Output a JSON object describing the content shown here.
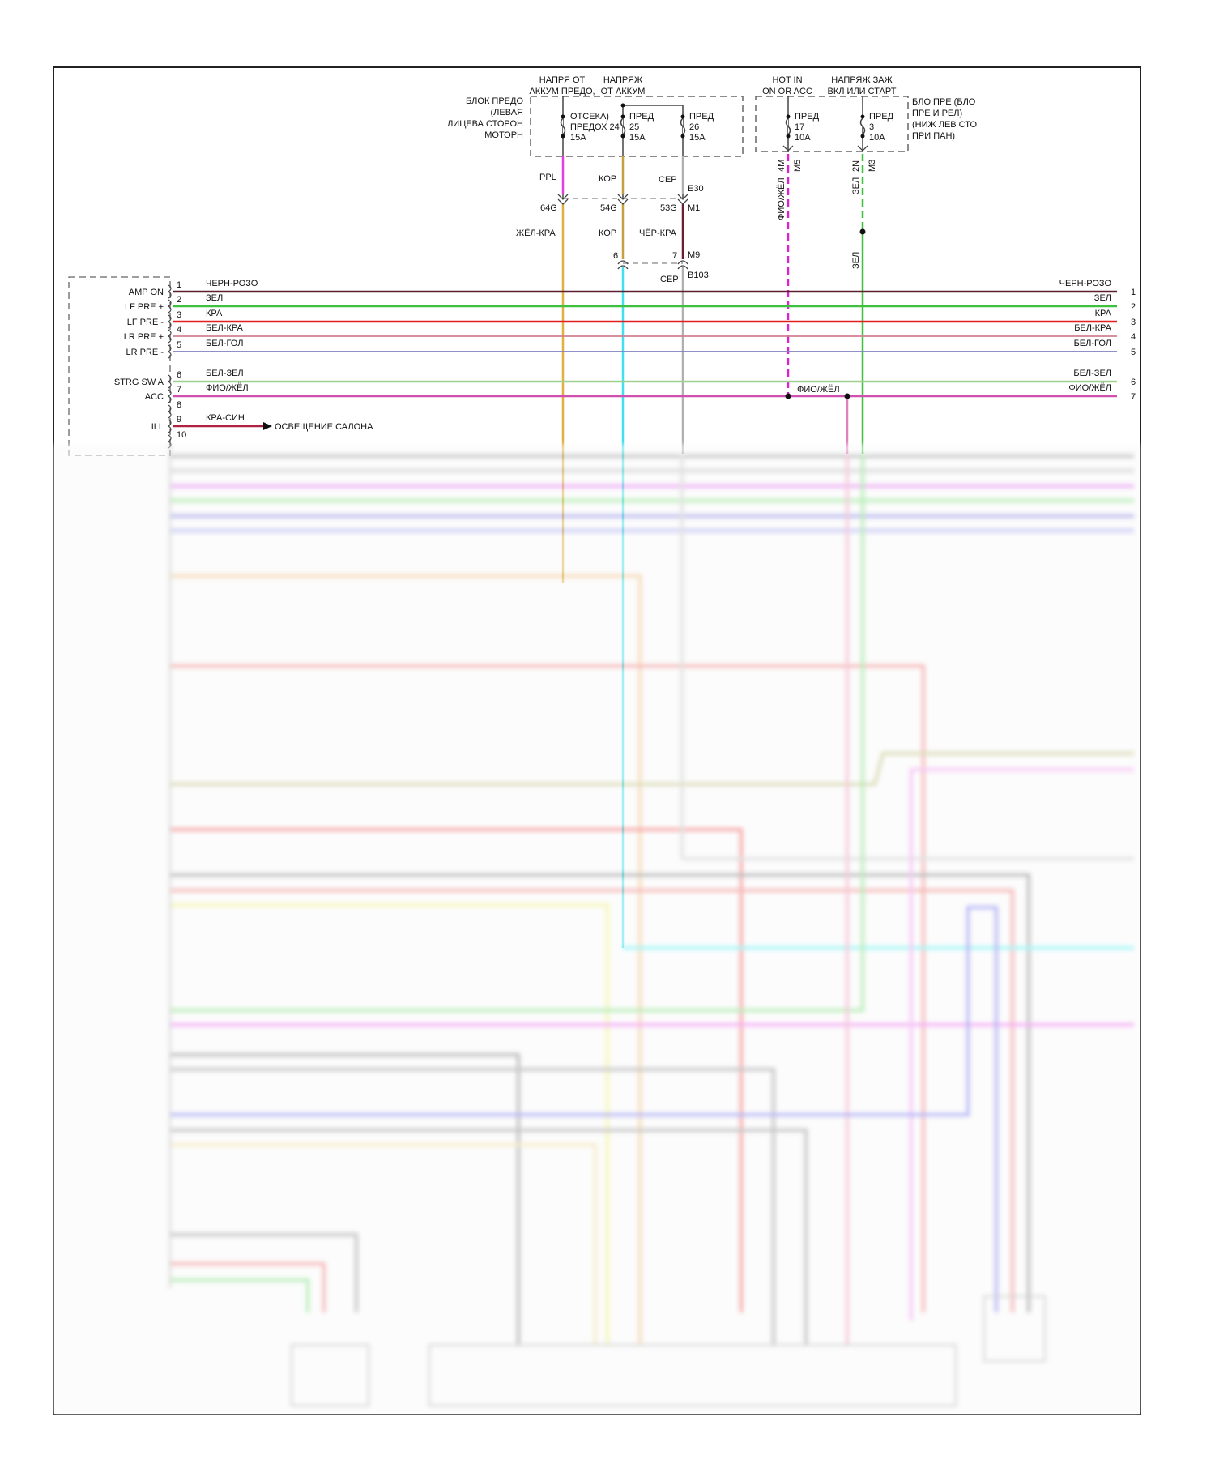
{
  "supplies": {
    "bat1": [
      "НАПРЯ ОТ",
      "АККУМ ПРЕДО,"
    ],
    "bat2": [
      "НАПРЯЖ",
      "ОТ АККУМ"
    ],
    "hot": [
      "HOT IN",
      "ON OR ACC"
    ],
    "ign": [
      "НАПРЯЖ ЗАЖ",
      "ВКЛ ИЛИ СТАРТ"
    ]
  },
  "fuse_block_left": [
    "БЛОК ПРЕДО",
    "(ЛЕВАЯ",
    "ЛИЦЕВА СТОРОН",
    "МОТОРН"
  ],
  "fuse_block_right": [
    "БЛО ПРЕ (БЛО",
    "ПРЕ И РЕЛ)",
    "(НИЖ ЛЕВ СТО",
    "ПРИ ПАН)"
  ],
  "fuses": [
    {
      "lines": [
        "ОТСЕКА)",
        "ПРЕДОХ 24",
        "15A"
      ]
    },
    {
      "lines": [
        "ПРЕД",
        "25",
        "15A"
      ]
    },
    {
      "lines": [
        "ПРЕД",
        "26",
        "15A"
      ]
    },
    {
      "lines": [
        "ПРЕД",
        "17",
        "10A"
      ]
    },
    {
      "lines": [
        "ПРЕД",
        "3",
        "10A"
      ]
    }
  ],
  "upper_wires": {
    "w1": "PPL",
    "w2": "КОР",
    "w3": "СЕР",
    "e30": "E30",
    "m1": "M1"
  },
  "connectors": {
    "c1": "64G",
    "c2": "54G",
    "c3": "53G",
    "p6": "6",
    "p7": "7",
    "m9": "M9",
    "b103": "B103",
    "m4": "4M",
    "m5": "M5",
    "n2": "2N",
    "m3": "M3"
  },
  "lower_wires": {
    "w1": "ЖЁЛ-КРА",
    "w2": "КОР",
    "w3": "ЧЁР-КРА",
    "w3b": "СЕР",
    "hot": "ФИО/ЖЁЛ",
    "ign": "ЗЕЛ",
    "ign2": "ЗЕЛ",
    "acc_splice": "ФИО/ЖЁЛ"
  },
  "colors": {
    "ppl": "#e040e0",
    "kor": "#c8a040",
    "ser": "#b0b0b0",
    "zhel_kra": "#e0b040",
    "cher_kra": "#6a2030",
    "cyan": "#40e0f0",
    "fio": "#e020d0",
    "zel": "#40c040",
    "kra": "#e02020",
    "black_pink": "#5a2030",
    "bel_kra": "#d08090",
    "bel_gol": "#8080c0",
    "bel_zel": "#a0d090",
    "fio_zhel": "#d050b0",
    "kra_sin": "#b02040"
  },
  "radio_pins": [
    {
      "num": "1",
      "name": "AMP ON",
      "wire": "ЧЕРН-РОЗО"
    },
    {
      "num": "2",
      "name": "LF PRE +",
      "wire": "ЗЕЛ"
    },
    {
      "num": "3",
      "name": "LF PRE -",
      "wire": "КРА"
    },
    {
      "num": "4",
      "name": "LR PRE +",
      "wire": "БЕЛ-КРА"
    },
    {
      "num": "5",
      "name": "LR PRE -",
      "wire": "БЕЛ-ГОЛ"
    },
    {
      "num": "6",
      "name": "STRG SW A",
      "wire": "БЕЛ-ЗЕЛ"
    },
    {
      "num": "7",
      "name": "ACC",
      "wire": "ФИО/ЖЁЛ"
    },
    {
      "num": "8",
      "name": "",
      "wire": ""
    },
    {
      "num": "9",
      "name": "ILL",
      "wire": "КРА-СИН"
    },
    {
      "num": "10",
      "name": "",
      "wire": ""
    }
  ],
  "ill_destination": "ОСВЕЩЕНИЕ САЛОНА",
  "right_pins": [
    {
      "num": "1",
      "wire": "ЧЕРН-РОЗО"
    },
    {
      "num": "2",
      "wire": "ЗЕЛ"
    },
    {
      "num": "3",
      "wire": "КРА"
    },
    {
      "num": "4",
      "wire": "БЕЛ-КРА"
    },
    {
      "num": "5",
      "wire": "БЕЛ-ГОЛ"
    },
    {
      "num": "6",
      "wire": "БЕЛ-ЗЕЛ"
    },
    {
      "num": "7",
      "wire": "ФИО/ЖЁЛ"
    }
  ]
}
